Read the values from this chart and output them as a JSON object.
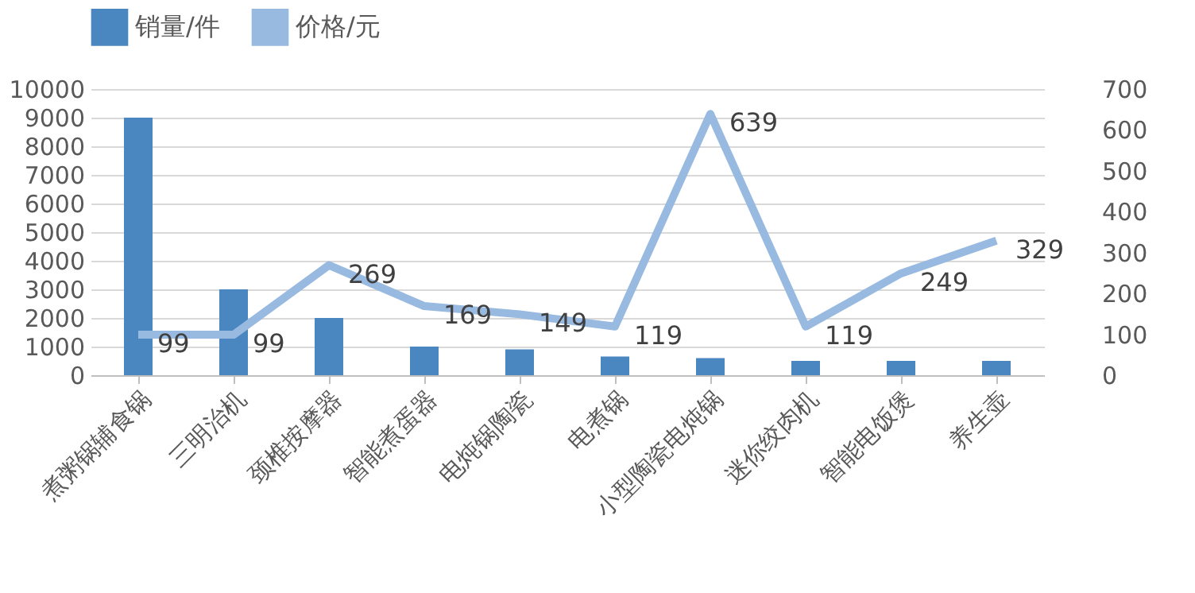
{
  "chart_data": {
    "type": "bar",
    "categories": [
      "煮粥锅辅食锅",
      "三明治机",
      "颈椎按摩器",
      "智能煮蛋器",
      "电炖锅陶瓷",
      "电煮锅",
      "小型陶瓷电炖锅",
      "迷你绞肉机",
      "智能电饭煲",
      "养生壶"
    ],
    "series": [
      {
        "name": "销量/件",
        "color": "#4a86c0",
        "values": [
          9000,
          3000,
          2000,
          1000,
          900,
          650,
          600,
          500,
          500,
          500
        ]
      },
      {
        "name": "价格/元",
        "color": "#98b9e0",
        "type": "line",
        "axis": "y2",
        "data_labels": true,
        "values": [
          99,
          99,
          269,
          169,
          149,
          119,
          639,
          119,
          249,
          329
        ]
      }
    ],
    "ylim": [
      0,
      10000
    ],
    "yticks": [
      0,
      1000,
      2000,
      3000,
      4000,
      5000,
      6000,
      7000,
      8000,
      9000,
      10000
    ],
    "y2lim": [
      0,
      700
    ],
    "y2ticks": [
      0,
      100,
      200,
      300,
      400,
      500,
      600,
      700
    ],
    "grid": "y",
    "legend": "top",
    "marker": "none",
    "line_style": "solid"
  }
}
